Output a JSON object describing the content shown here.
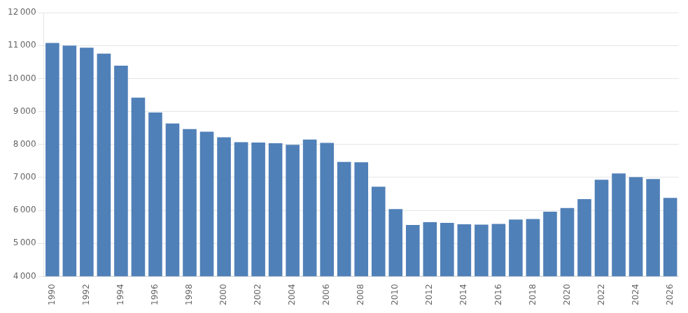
{
  "chart_data": {
    "type": "bar",
    "categories": [
      "1990",
      null,
      "1992",
      null,
      "1994",
      null,
      "1996",
      null,
      "1998",
      null,
      "2000",
      null,
      "2002",
      null,
      "2004",
      null,
      "2006",
      null,
      "2008",
      null,
      "2010",
      null,
      "2012",
      null,
      "2014",
      null,
      "2016",
      null,
      "2018",
      null,
      "2020",
      null,
      "2022",
      null,
      "2024",
      null,
      "2026"
    ],
    "values": [
      11080,
      11000,
      10940,
      10760,
      10390,
      9420,
      8970,
      8640,
      8470,
      8390,
      8220,
      8070,
      8060,
      8040,
      7990,
      8150,
      8050,
      7470,
      7460,
      6720,
      6040,
      5560,
      5640,
      5620,
      5580,
      5570,
      5590,
      5720,
      5740,
      5960,
      6070,
      6340,
      6930,
      7120,
      7010,
      6950,
      6380
    ],
    "color": "#5080b8",
    "ylim": [
      4000,
      12000
    ],
    "yticks": [
      {
        "value": 4000,
        "label": "4 000"
      },
      {
        "value": 5000,
        "label": "5 000"
      },
      {
        "value": 6000,
        "label": "6 000"
      },
      {
        "value": 7000,
        "label": "7 000"
      },
      {
        "value": 8000,
        "label": "8 000"
      },
      {
        "value": 9000,
        "label": "9 000"
      },
      {
        "value": 10000,
        "label": "10 000"
      },
      {
        "value": 11000,
        "label": "11 000"
      },
      {
        "value": 12000,
        "label": "12 000"
      }
    ],
    "grid": true
  }
}
